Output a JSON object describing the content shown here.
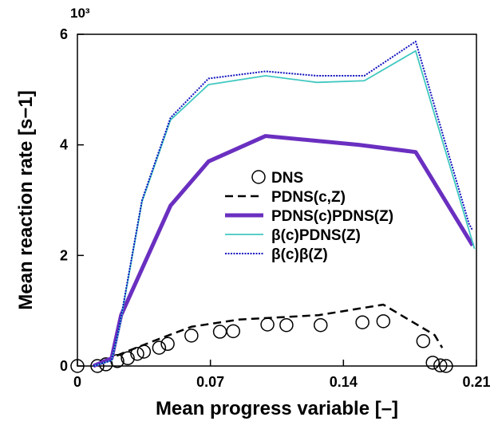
{
  "chart_data": {
    "type": "line",
    "xlabel": "Mean progress variable [–]",
    "ylabel": "Mean reaction rate [s−1]",
    "y_multiplier": "10³",
    "xlim": [
      0,
      0.21
    ],
    "xticks": [
      0,
      0.07,
      0.14,
      0.21
    ],
    "ylim": [
      0,
      6
    ],
    "yticks": [
      0,
      2,
      4,
      6
    ],
    "series": [
      {
        "name": "DNS",
        "style": "markers",
        "color": "#000000",
        "x": [
          0,
          0.0105,
          0.015,
          0.021,
          0.0265,
          0.0315,
          0.035,
          0.043,
          0.0475,
          0.06,
          0.075,
          0.082,
          0.1,
          0.11,
          0.128,
          0.15,
          0.161,
          0.182,
          0.187,
          0.191,
          0.194
        ],
        "values": [
          0,
          0,
          0.03,
          0.09,
          0.14,
          0.22,
          0.26,
          0.33,
          0.4,
          0.55,
          0.62,
          0.63,
          0.75,
          0.74,
          0.74,
          0.79,
          0.81,
          0.45,
          0.06,
          0.01,
          0
        ]
      },
      {
        "name": "PDNS(c,Z)",
        "style": "dashed",
        "color": "#000000",
        "x": [
          0.0084,
          0.016,
          0.0265,
          0.043,
          0.06,
          0.085,
          0.127,
          0.161,
          0.188,
          0.192
        ],
        "values": [
          0,
          0.12,
          0.27,
          0.49,
          0.71,
          0.84,
          0.92,
          1.11,
          0.56,
          0.33
        ]
      },
      {
        "name": "PDNS(c)PDNS(Z)",
        "style": "thick",
        "color": "#6a2fc0",
        "x": [
          0.0084,
          0.018,
          0.023,
          0.049,
          0.069,
          0.099,
          0.148,
          0.178,
          0.208
        ],
        "values": [
          0,
          0.14,
          0.92,
          2.9,
          3.7,
          4.16,
          4.0,
          3.87,
          2.18
        ]
      },
      {
        "name": "β(c)PDNS(Z)",
        "style": "solid",
        "color": "#40c8c0",
        "x": [
          0.0084,
          0.018,
          0.022,
          0.034,
          0.049,
          0.069,
          0.099,
          0.126,
          0.151,
          0.178,
          0.209
        ],
        "values": [
          0,
          0.1,
          0.67,
          2.97,
          4.45,
          5.09,
          5.25,
          5.13,
          5.16,
          5.7,
          2.12
        ]
      },
      {
        "name": "β(c)β(Z)",
        "style": "dotted",
        "color": "#1010c0",
        "x": [
          0.0084,
          0.018,
          0.022,
          0.034,
          0.049,
          0.069,
          0.099,
          0.126,
          0.151,
          0.178,
          0.206,
          0.208
        ],
        "values": [
          0,
          0.1,
          0.7,
          3.0,
          4.49,
          5.2,
          5.33,
          5.25,
          5.25,
          5.87,
          2.58,
          2.45
        ]
      }
    ]
  }
}
